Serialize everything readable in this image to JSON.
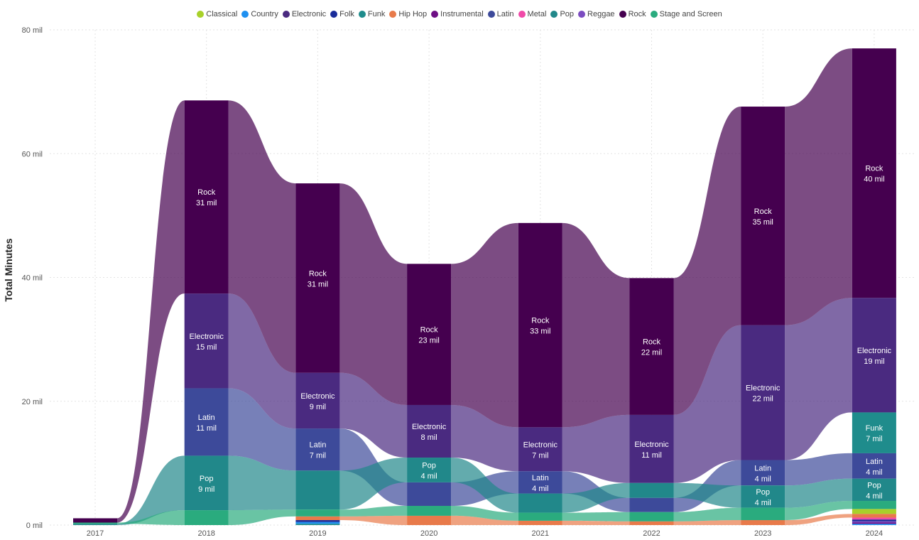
{
  "chart_data": {
    "type": "ribbon",
    "ylabel": "Total Minutes",
    "xlabel": "",
    "ylim": [
      0,
      80
    ],
    "yticks": [
      {
        "value": 0,
        "label": "0 mil"
      },
      {
        "value": 20,
        "label": "20 mil"
      },
      {
        "value": 40,
        "label": "40 mil"
      },
      {
        "value": 60,
        "label": "60 mil"
      },
      {
        "value": 80,
        "label": "80 mil"
      }
    ],
    "categories": [
      "2017",
      "2018",
      "2019",
      "2020",
      "2021",
      "2022",
      "2023",
      "2024"
    ],
    "grid": true,
    "legend_position": "top",
    "series": [
      {
        "name": "Classical",
        "color": "#a8d12a",
        "values": [
          0,
          0,
          0,
          0,
          0,
          0,
          0,
          0.8
        ]
      },
      {
        "name": "Country",
        "color": "#1e90f0",
        "values": [
          0,
          0,
          0.3,
          0,
          0,
          0,
          0,
          0.2
        ]
      },
      {
        "name": "Electronic",
        "color": "#4a2a80",
        "values": [
          0,
          15.3,
          9,
          8.5,
          7.1,
          11,
          21.8,
          18.5
        ]
      },
      {
        "name": "Folk",
        "color": "#1a2c9a",
        "values": [
          0,
          0,
          0.3,
          0,
          0,
          0,
          0,
          0.3
        ]
      },
      {
        "name": "Funk",
        "color": "#1f8c8c",
        "values": [
          0,
          0,
          0.2,
          0,
          0,
          0,
          0,
          6.6
        ]
      },
      {
        "name": "Hip Hop",
        "color": "#e87a4a",
        "values": [
          0,
          0,
          0.6,
          1.5,
          0.7,
          0.6,
          0.8,
          0.6
        ]
      },
      {
        "name": "Instrumental",
        "color": "#6e0f84",
        "values": [
          0,
          0,
          0,
          0,
          0,
          0,
          0,
          0.2
        ]
      },
      {
        "name": "Latin",
        "color": "#3d4a9a",
        "values": [
          0,
          10.9,
          6.8,
          3.8,
          3.6,
          2.3,
          4.1,
          4.1
        ]
      },
      {
        "name": "Metal",
        "color": "#f04aa8",
        "values": [
          0,
          0,
          0,
          0,
          0,
          0,
          0,
          0.3
        ]
      },
      {
        "name": "Pop",
        "color": "#21888a",
        "values": [
          0.2,
          8.8,
          6.3,
          4,
          3.1,
          2.4,
          3.6,
          3.6
        ]
      },
      {
        "name": "Reggae",
        "color": "#7b4cc0",
        "values": [
          0,
          0,
          0,
          0,
          0,
          0,
          0,
          0.2
        ]
      },
      {
        "name": "Rock",
        "color": "#45004f",
        "values": [
          0.7,
          31.2,
          30.6,
          22.8,
          33,
          22.1,
          35.3,
          40.3
        ]
      },
      {
        "name": "Stage and Screen",
        "color": "#2aab7e",
        "values": [
          0.2,
          2.4,
          1.1,
          1.6,
          1.3,
          1.5,
          2,
          1.3
        ]
      }
    ],
    "data_labels": [
      {
        "category": "2018",
        "series": "Rock",
        "name": "Rock",
        "value": "31 mil"
      },
      {
        "category": "2018",
        "series": "Electronic",
        "name": "Electronic",
        "value": "15 mil"
      },
      {
        "category": "2018",
        "series": "Latin",
        "name": "Latin",
        "value": "11 mil"
      },
      {
        "category": "2018",
        "series": "Pop",
        "name": "Pop",
        "value": "9 mil"
      },
      {
        "category": "2019",
        "series": "Rock",
        "name": "Rock",
        "value": "31 mil"
      },
      {
        "category": "2019",
        "series": "Electronic",
        "name": "Electronic",
        "value": "9 mil"
      },
      {
        "category": "2019",
        "series": "Latin",
        "name": "Latin",
        "value": "7 mil"
      },
      {
        "category": "2020",
        "series": "Rock",
        "name": "Rock",
        "value": "23 mil"
      },
      {
        "category": "2020",
        "series": "Electronic",
        "name": "Electronic",
        "value": "8 mil"
      },
      {
        "category": "2020",
        "series": "Pop",
        "name": "Pop",
        "value": "4 mil"
      },
      {
        "category": "2021",
        "series": "Rock",
        "name": "Rock",
        "value": "33 mil"
      },
      {
        "category": "2021",
        "series": "Electronic",
        "name": "Electronic",
        "value": "7 mil"
      },
      {
        "category": "2021",
        "series": "Latin",
        "name": "Latin",
        "value": "4 mil"
      },
      {
        "category": "2022",
        "series": "Rock",
        "name": "Rock",
        "value": "22 mil"
      },
      {
        "category": "2022",
        "series": "Electronic",
        "name": "Electronic",
        "value": "11 mil"
      },
      {
        "category": "2023",
        "series": "Rock",
        "name": "Rock",
        "value": "35 mil"
      },
      {
        "category": "2023",
        "series": "Electronic",
        "name": "Electronic",
        "value": "22 mil"
      },
      {
        "category": "2023",
        "series": "Latin",
        "name": "Latin",
        "value": "4 mil"
      },
      {
        "category": "2023",
        "series": "Pop",
        "name": "Pop",
        "value": "4 mil"
      },
      {
        "category": "2024",
        "series": "Rock",
        "name": "Rock",
        "value": "40 mil"
      },
      {
        "category": "2024",
        "series": "Electronic",
        "name": "Electronic",
        "value": "19 mil"
      },
      {
        "category": "2024",
        "series": "Funk",
        "name": "Funk",
        "value": "7 mil"
      },
      {
        "category": "2024",
        "series": "Latin",
        "name": "Latin",
        "value": "4 mil"
      },
      {
        "category": "2024",
        "series": "Pop",
        "name": "Pop",
        "value": "4 mil"
      }
    ]
  }
}
